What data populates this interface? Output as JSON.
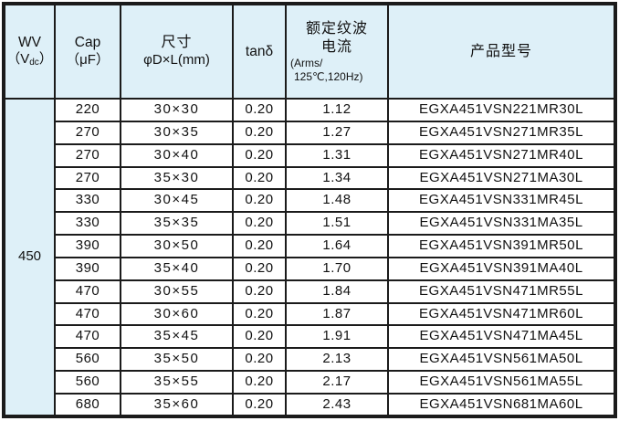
{
  "colors": {
    "header_bg": "#def0f8",
    "border": "#1b1b1b",
    "row_bg": "#ffffff",
    "text": "#111111",
    "page_bg": "#ffffff"
  },
  "table": {
    "header": {
      "wv": {
        "line1": "WV",
        "unit_prefix": "（V",
        "unit_sub": "dc",
        "unit_suffix": "）"
      },
      "cap": {
        "line1": "Cap",
        "line2": "（μF）"
      },
      "size": {
        "line1": "尺寸",
        "line2": "φD×L(mm)"
      },
      "tan_delta": "tanδ",
      "ripple": {
        "line1": "额定纹波",
        "line2": "电流",
        "line3": "(Arms/",
        "line4": "125℃,120Hz)"
      },
      "model": "产品型号"
    },
    "wv_value": "450",
    "rows": [
      {
        "cap": "220",
        "size": "30×30",
        "tan_delta": "0.20",
        "ripple_current": "1.12",
        "model": "EGXA451VSN221MR30L"
      },
      {
        "cap": "270",
        "size": "30×35",
        "tan_delta": "0.20",
        "ripple_current": "1.27",
        "model": "EGXA451VSN271MR35L"
      },
      {
        "cap": "270",
        "size": "30×40",
        "tan_delta": "0.20",
        "ripple_current": "1.31",
        "model": "EGXA451VSN271MR40L"
      },
      {
        "cap": "270",
        "size": "35×30",
        "tan_delta": "0.20",
        "ripple_current": "1.34",
        "model": "EGXA451VSN271MA30L"
      },
      {
        "cap": "330",
        "size": "30×45",
        "tan_delta": "0.20",
        "ripple_current": "1.48",
        "model": "EGXA451VSN331MR45L"
      },
      {
        "cap": "330",
        "size": "35×35",
        "tan_delta": "0.20",
        "ripple_current": "1.51",
        "model": "EGXA451VSN331MA35L"
      },
      {
        "cap": "390",
        "size": "30×50",
        "tan_delta": "0.20",
        "ripple_current": "1.64",
        "model": "EGXA451VSN391MR50L"
      },
      {
        "cap": "390",
        "size": "35×40",
        "tan_delta": "0.20",
        "ripple_current": "1.70",
        "model": "EGXA451VSN391MA40L"
      },
      {
        "cap": "470",
        "size": "30×55",
        "tan_delta": "0.20",
        "ripple_current": "1.84",
        "model": "EGXA451VSN471MR55L"
      },
      {
        "cap": "470",
        "size": "30×60",
        "tan_delta": "0.20",
        "ripple_current": "1.87",
        "model": "EGXA451VSN471MR60L"
      },
      {
        "cap": "470",
        "size": "35×45",
        "tan_delta": "0.20",
        "ripple_current": "1.91",
        "model": "EGXA451VSN471MA45L"
      },
      {
        "cap": "560",
        "size": "35×50",
        "tan_delta": "0.20",
        "ripple_current": "2.13",
        "model": "EGXA451VSN561MA50L"
      },
      {
        "cap": "560",
        "size": "35×55",
        "tan_delta": "0.20",
        "ripple_current": "2.17",
        "model": "EGXA451VSN561MA55L"
      },
      {
        "cap": "680",
        "size": "35×60",
        "tan_delta": "0.20",
        "ripple_current": "2.43",
        "model": "EGXA451VSN681MA60L"
      }
    ]
  }
}
